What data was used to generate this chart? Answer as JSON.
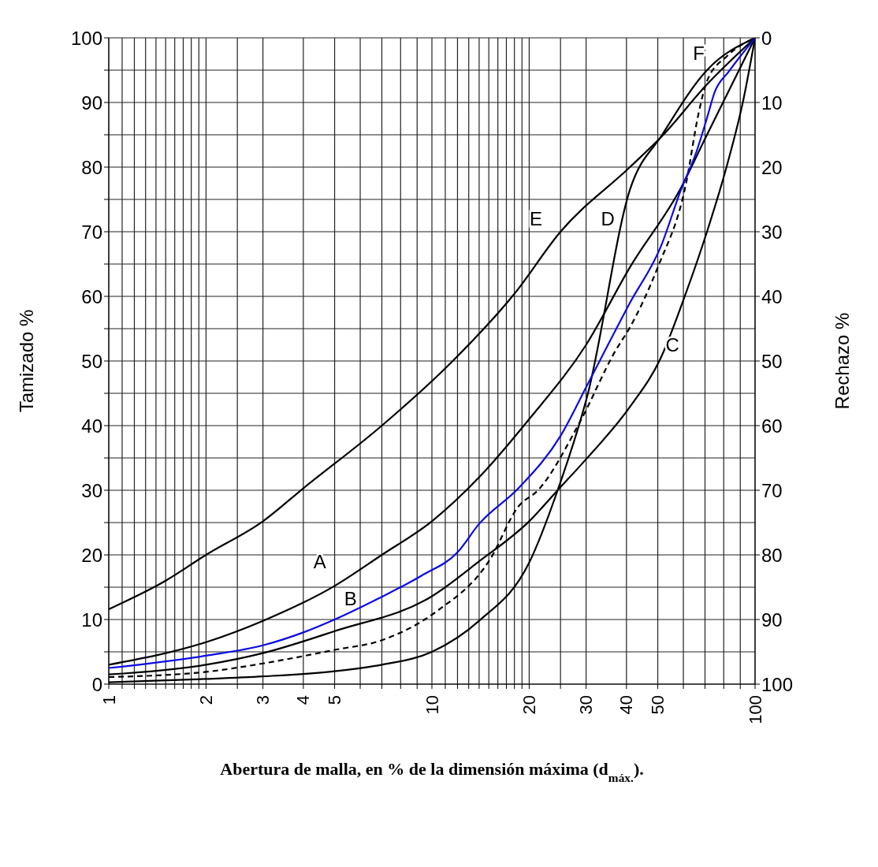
{
  "chart_data": {
    "type": "line",
    "xlabel": "Abertura de malla, en % de la dimensión máxima (d$_{máx.}$).",
    "ylabel": "Tamizado %",
    "y2label": "Rechazo %",
    "xlim": [
      1,
      100
    ],
    "xticks": [
      1,
      {
        "value": 1.1,
        "label": null
      },
      {
        "value": 1.2,
        "label": null
      },
      {
        "value": 1.3,
        "label": null
      },
      {
        "value": 1.4,
        "label": null
      },
      {
        "value": 1.5,
        "label": null
      },
      {
        "value": 1.6,
        "label": null
      },
      {
        "value": 1.7,
        "label": null
      },
      {
        "value": 1.8,
        "label": null
      },
      {
        "value": 1.9,
        "label": null
      },
      2,
      {
        "value": 2.5,
        "label": null
      },
      3,
      4,
      5,
      {
        "value": 6,
        "label": null
      },
      {
        "value": 7,
        "label": null
      },
      {
        "value": 8,
        "label": null
      },
      {
        "value": 9,
        "label": null
      },
      10,
      {
        "value": 11,
        "label": null
      },
      {
        "value": 12,
        "label": null
      },
      {
        "value": 13,
        "label": null
      },
      {
        "value": 14,
        "label": null
      },
      {
        "value": 15,
        "label": null
      },
      {
        "value": 16,
        "label": null
      },
      {
        "value": 17,
        "label": null
      },
      {
        "value": 18,
        "label": null
      },
      {
        "value": 19,
        "label": null
      },
      20,
      {
        "value": 25,
        "label": null
      },
      30,
      40,
      50,
      {
        "value": 60,
        "label": null
      },
      {
        "value": 70,
        "label": null
      },
      {
        "value": 80,
        "label": null
      },
      {
        "value": 90,
        "label": null
      },
      100
    ],
    "ylim": [
      0,
      100
    ],
    "yticks": [
      0,
      {
        "value": 5,
        "label": null
      },
      10,
      {
        "value": 15,
        "label": null
      },
      20,
      {
        "value": 25,
        "label": null
      },
      30,
      {
        "value": 35,
        "label": null
      },
      40,
      {
        "value": 45,
        "label": null
      },
      50,
      {
        "value": 55,
        "label": null
      },
      60,
      {
        "value": 65,
        "label": null
      },
      70,
      {
        "value": 75,
        "label": null
      },
      80,
      {
        "value": 85,
        "label": null
      },
      90,
      {
        "value": 95,
        "label": null
      },
      100
    ],
    "y2lim": [
      100,
      0
    ],
    "y2ticks": [
      0,
      10,
      20,
      30,
      40,
      50,
      60,
      70,
      80,
      90,
      100
    ],
    "log": "x",
    "grid": true,
    "marker": "none",
    "series": [
      {
        "color": "#000000",
        "x": [
          1,
          1.5,
          2,
          3,
          4,
          7,
          11.6,
          18,
          25,
          41,
          52,
          71,
          100
        ],
        "values": [
          11.6,
          16,
          20,
          25.2,
          30.3,
          40,
          50,
          60.4,
          70,
          80,
          85,
          92.8,
          100
        ]
      },
      {
        "color": "#000000",
        "x": [
          1,
          2,
          3,
          5,
          7,
          10,
          14,
          20,
          30,
          41,
          59,
          71,
          100
        ],
        "values": [
          3,
          6.5,
          9.8,
          15.2,
          20,
          25.2,
          32,
          41,
          52.5,
          64.5,
          76.8,
          85,
          100
        ]
      },
      {
        "color": "#000000",
        "x": [
          1,
          2,
          3,
          5,
          10,
          14,
          20,
          24.5,
          30,
          41,
          51,
          61,
          71,
          82,
          92,
          100
        ],
        "values": [
          1.5,
          3,
          4.8,
          8.2,
          13.6,
          19,
          25.2,
          30,
          34.8,
          42.9,
          50.4,
          60.4,
          70,
          80.4,
          90.4,
          100
        ]
      },
      {
        "color": "#000000",
        "x": [
          1,
          2,
          3,
          5,
          7,
          10,
          14,
          20,
          24.5,
          30.4,
          41,
          51.6,
          71,
          100
        ],
        "values": [
          0.3,
          0.8,
          1.2,
          2,
          3,
          5,
          9.8,
          18.8,
          30,
          45,
          76.5,
          85,
          95,
          100
        ]
      },
      {
        "color": "#000000",
        "line_style": "dashed",
        "x": [
          1,
          2,
          3,
          5,
          7,
          10.3,
          15,
          18.6,
          21.3,
          28.6,
          37,
          41,
          50,
          61,
          67,
          71,
          82,
          100
        ],
        "values": [
          1.1,
          1.9,
          3.2,
          5.3,
          6.8,
          11.2,
          19,
          27.6,
          30,
          40.4,
          51.6,
          55.2,
          64.5,
          77.2,
          88.5,
          93.3,
          97.2,
          100
        ]
      },
      {
        "color": "#0a0ae6",
        "x": [
          1,
          2,
          3,
          4,
          5,
          6.8,
          9.3,
          12,
          14,
          18.6,
          25,
          30.4,
          41,
          51,
          59,
          66,
          71,
          75,
          83,
          100
        ],
        "values": [
          2.5,
          4.4,
          6,
          8,
          10,
          13.2,
          16.8,
          20.4,
          24.8,
          30.4,
          38.4,
          46.5,
          59,
          67.6,
          76.5,
          82.5,
          87.6,
          91.6,
          94.8,
          100
        ]
      }
    ],
    "annotations": [
      "A",
      "B",
      "C",
      "D",
      "E",
      "F"
    ]
  }
}
